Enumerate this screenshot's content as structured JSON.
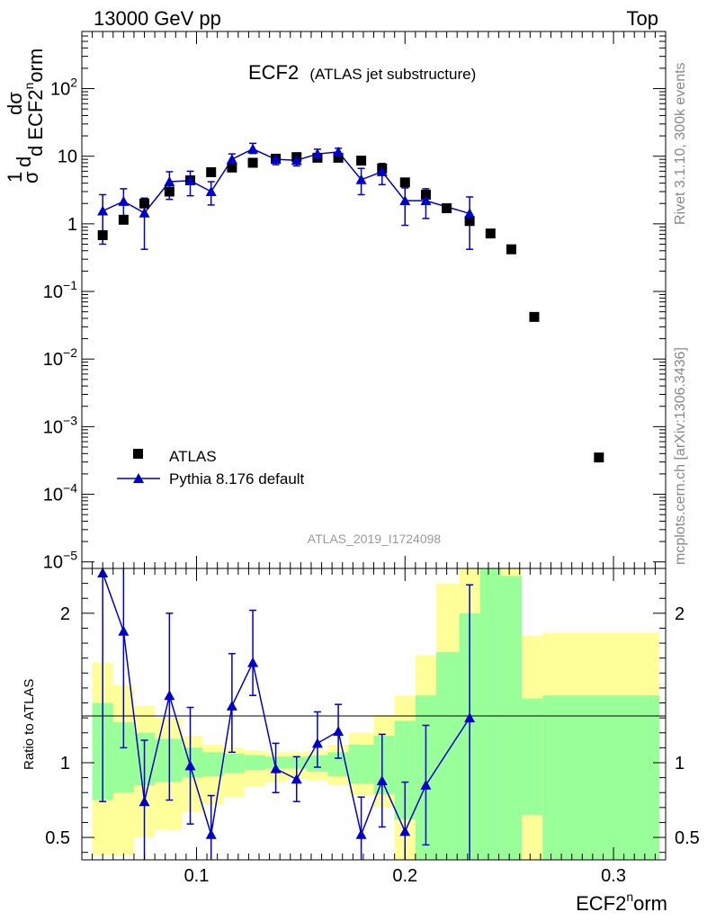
{
  "header": {
    "left": "13000 GeV pp",
    "right": "Top"
  },
  "side_text": {
    "rivet": "Rivet 3.1.10,  300k events",
    "mcplots": "mcplots.cern.ch [arXiv:1306.3436]"
  },
  "analysis_id": "ATLAS_2019_I1724098",
  "title": {
    "main": "ECF2",
    "sub": "(ATLAS jet substructure)"
  },
  "ylabel_top": {
    "frac1_num": "1",
    "frac1_den": "σ",
    "frac1_d": "d",
    "frac2_num": "dσ",
    "frac2_den": "d ECF2",
    "frac2_sup": "n",
    "frac2_tail": "orm"
  },
  "ylabel_bottom": "Ratio to ATLAS",
  "xlabel": {
    "main": "ECF2",
    "sup": "n",
    "tail": "orm"
  },
  "legend": [
    {
      "label": "ATLAS",
      "marker": "square",
      "color": "#000000"
    },
    {
      "label": "Pythia 8.176 default",
      "marker": "triangle",
      "color": "#0000cc"
    }
  ],
  "colors": {
    "data": "#000000",
    "mc": "#0000cc",
    "band_outer": "#ffff99",
    "band_inner": "#99ff99"
  },
  "top_axis": {
    "scale": "log",
    "ylim": [
      8e-06,
      700
    ],
    "tick_labels": [
      {
        "base": "10",
        "exp": "2",
        "value": 100
      },
      {
        "base": "10",
        "exp": "",
        "value": 10
      },
      {
        "base": "1",
        "exp": "",
        "value": 1
      },
      {
        "base": "10",
        "exp": "−1",
        "value": 0.1
      },
      {
        "base": "10",
        "exp": "−2",
        "value": 0.01
      },
      {
        "base": "10",
        "exp": "−3",
        "value": 0.001
      },
      {
        "base": "10",
        "exp": "−4",
        "value": 0.0001
      },
      {
        "base": "10",
        "exp": "−5",
        "value": 1e-05
      }
    ]
  },
  "bottom_axis": {
    "ylim": [
      0.35,
      2.3
    ],
    "tick_labels": [
      {
        "label": "0.5",
        "value": 0.5
      },
      {
        "label": "1",
        "value": 1
      },
      {
        "label": "2",
        "value": 2
      }
    ]
  },
  "x_axis": {
    "xlim": [
      0.045,
      0.325
    ],
    "tick_labels": [
      {
        "label": "0.1",
        "value": 0.1
      },
      {
        "label": "0.2",
        "value": 0.2
      },
      {
        "label": "0.3",
        "value": 0.3
      }
    ]
  },
  "chart_data": {
    "type": "scatter",
    "title": "ECF2 (ATLAS jet substructure)",
    "xlabel": "ECF2norm",
    "ylabel": "1/σ dσ/d ECF2norm",
    "yscale": "log",
    "legend_position": "lower-left",
    "data_series": {
      "name": "ATLAS",
      "x": [
        0.055,
        0.065,
        0.075,
        0.087,
        0.097,
        0.107,
        0.117,
        0.127,
        0.138,
        0.148,
        0.158,
        0.168,
        0.179,
        0.189,
        0.2,
        0.21,
        0.22,
        0.231,
        0.241,
        0.251,
        0.262,
        0.293
      ],
      "y": [
        0.68,
        1.15,
        2.0,
        3.0,
        4.4,
        5.8,
        6.8,
        8.0,
        9.2,
        9.7,
        9.5,
        9.5,
        8.6,
        6.6,
        4.1,
        2.7,
        1.7,
        1.1,
        0.72,
        0.42,
        0.042,
        0.00035
      ]
    },
    "mc_series": {
      "name": "Pythia 8.176 default",
      "x": [
        0.055,
        0.065,
        0.075,
        0.087,
        0.097,
        0.107,
        0.117,
        0.127,
        0.138,
        0.148,
        0.158,
        0.168,
        0.179,
        0.189,
        0.2,
        0.21,
        0.231
      ],
      "y": [
        1.55,
        2.15,
        1.45,
        4.2,
        4.35,
        3.0,
        9.0,
        12.8,
        9.0,
        8.7,
        10.8,
        11.6,
        4.5,
        5.9,
        2.2,
        2.2,
        1.42
      ],
      "ylow": [
        0.5,
        1.3,
        0.42,
        2.3,
        2.6,
        1.9,
        7.0,
        11.0,
        7.5,
        7.2,
        9.3,
        9.8,
        2.7,
        3.8,
        0.95,
        1.2,
        0.42
      ],
      "yhigh": [
        2.7,
        3.3,
        2.4,
        5.9,
        6.0,
        4.2,
        10.8,
        15.5,
        10.5,
        10.3,
        12.7,
        13.1,
        6.6,
        7.8,
        3.4,
        3.3,
        2.5
      ]
    },
    "ratio": {
      "x": [
        0.055,
        0.065,
        0.075,
        0.087,
        0.097,
        0.107,
        0.117,
        0.127,
        0.138,
        0.148,
        0.158,
        0.168,
        0.179,
        0.189,
        0.2,
        0.21,
        0.231
      ],
      "y": [
        2.27,
        1.88,
        0.74,
        1.45,
        0.98,
        0.52,
        1.38,
        1.67,
        0.96,
        0.89,
        1.13,
        1.21,
        0.52,
        0.88,
        0.54,
        0.85,
        1.3
      ],
      "ylow": [
        0.74,
        1.1,
        0.21,
        0.75,
        0.59,
        0.33,
        1.07,
        1.45,
        0.8,
        0.74,
        0.97,
        1.03,
        0.31,
        0.57,
        0.23,
        0.45,
        0.35
      ],
      "yhigh": [
        2.3,
        2.3,
        1.15,
        2.0,
        1.37,
        0.78,
        1.73,
        2.02,
        1.13,
        1.04,
        1.34,
        1.39,
        0.77,
        1.19,
        0.87,
        1.25,
        2.19
      ]
    },
    "bands": {
      "edges": [
        0.05,
        0.06,
        0.07,
        0.08,
        0.093,
        0.103,
        0.113,
        0.123,
        0.133,
        0.143,
        0.153,
        0.163,
        0.173,
        0.185,
        0.195,
        0.205,
        0.215,
        0.226,
        0.236,
        0.246,
        0.256,
        0.266,
        0.322
      ],
      "outer_low": [
        0.38,
        0.38,
        0.5,
        0.55,
        0.67,
        0.72,
        0.77,
        0.84,
        0.87,
        0.89,
        0.88,
        0.85,
        0.78,
        0.7,
        0.35,
        0.35,
        0.35,
        0.35,
        0.35,
        0.35,
        0.35,
        0.35
      ],
      "outer_high": [
        1.67,
        1.52,
        1.38,
        1.3,
        1.18,
        1.12,
        1.1,
        1.08,
        1.07,
        1.07,
        1.08,
        1.12,
        1.2,
        1.32,
        1.45,
        1.72,
        2.2,
        2.3,
        2.3,
        2.3,
        1.85,
        1.87
      ],
      "inner_low": [
        0.75,
        0.8,
        0.85,
        0.87,
        0.9,
        0.91,
        0.93,
        0.95,
        0.96,
        0.96,
        0.94,
        0.91,
        0.86,
        0.79,
        0.62,
        0.35,
        0.35,
        0.35,
        0.35,
        0.35,
        0.65,
        0.35
      ],
      "inner_high": [
        1.4,
        1.27,
        1.2,
        1.16,
        1.1,
        1.07,
        1.06,
        1.05,
        1.04,
        1.04,
        1.05,
        1.07,
        1.12,
        1.18,
        1.28,
        1.45,
        1.74,
        2.0,
        2.3,
        2.25,
        1.43,
        1.45
      ]
    }
  }
}
